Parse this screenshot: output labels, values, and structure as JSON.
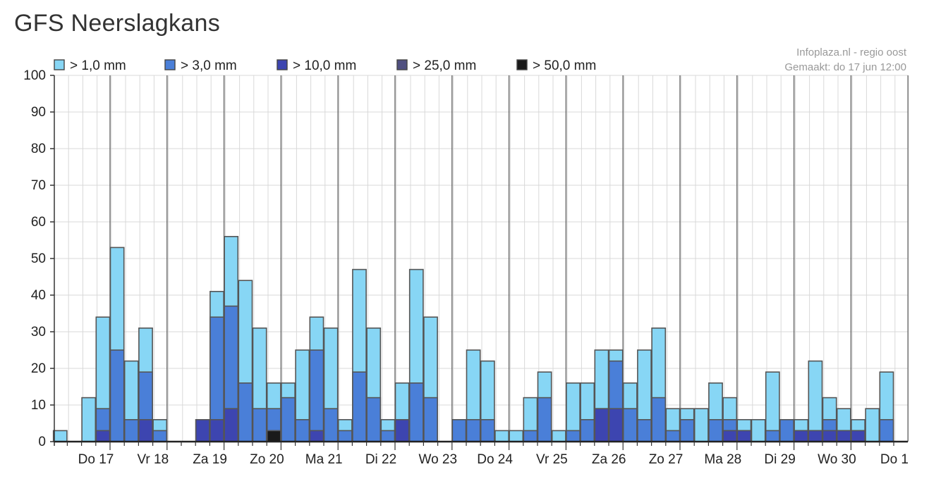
{
  "page": {
    "title": "GFS Neerslagkans"
  },
  "chart_data": {
    "type": "bar",
    "stacked": "overlay",
    "title": "",
    "xlabel": "",
    "ylabel": "",
    "ylim": [
      0,
      100
    ],
    "yticks": [
      0,
      10,
      20,
      30,
      40,
      50,
      60,
      70,
      80,
      90,
      100
    ],
    "grid": true,
    "legend_position": "top-left",
    "source": "Infoplaza.nl - regio oost",
    "made": "Gemaakt: do 17 jun 12:00",
    "day_labels": [
      "Do 17",
      "Vr 18",
      "Za 19",
      "Zo 20",
      "Ma 21",
      "Di 22",
      "Wo 23",
      "Do 24",
      "Vr 25",
      "Za 26",
      "Zo 27",
      "Ma 28",
      "Di 29",
      "Wo 30",
      "Do 1"
    ],
    "bars_per_day": 4,
    "series": [
      {
        "name": "> 1,0 mm",
        "color": "#87d6f5",
        "values": [
          3,
          0,
          12,
          34,
          53,
          22,
          31,
          6,
          0,
          0,
          6,
          41,
          56,
          44,
          31,
          16,
          16,
          25,
          34,
          31,
          6,
          47,
          31,
          6,
          16,
          47,
          34,
          0,
          6,
          25,
          22,
          3,
          3,
          12,
          19,
          3,
          16,
          16,
          25,
          25,
          16,
          25,
          31,
          9,
          9,
          9,
          16,
          12,
          6,
          6,
          19,
          6,
          6,
          22,
          12,
          9,
          6,
          9,
          19
        ]
      },
      {
        "name": "> 3,0 mm",
        "color": "#4a7fd8",
        "values": [
          0,
          0,
          0,
          9,
          25,
          6,
          19,
          3,
          0,
          0,
          6,
          34,
          37,
          16,
          9,
          9,
          12,
          6,
          25,
          9,
          3,
          19,
          12,
          3,
          6,
          16,
          12,
          0,
          6,
          6,
          6,
          0,
          0,
          3,
          12,
          0,
          3,
          6,
          9,
          22,
          9,
          6,
          12,
          3,
          6,
          0,
          6,
          6,
          3,
          0,
          3,
          6,
          3,
          3,
          6,
          3,
          3,
          0,
          6
        ]
      },
      {
        "name": "> 10,0 mm",
        "color": "#3d45b0",
        "values": [
          0,
          0,
          0,
          3,
          0,
          0,
          6,
          0,
          0,
          0,
          6,
          6,
          9,
          0,
          0,
          0,
          0,
          0,
          3,
          0,
          0,
          0,
          0,
          0,
          6,
          0,
          0,
          0,
          0,
          0,
          0,
          0,
          0,
          0,
          0,
          0,
          0,
          0,
          9,
          9,
          0,
          0,
          0,
          0,
          0,
          0,
          0,
          3,
          3,
          0,
          0,
          0,
          3,
          3,
          3,
          3,
          3,
          0,
          0
        ]
      },
      {
        "name": "> 25,0 mm",
        "color": "#505080",
        "values": [
          0,
          0,
          0,
          0,
          0,
          0,
          0,
          0,
          0,
          0,
          0,
          0,
          0,
          0,
          0,
          0,
          0,
          0,
          0,
          0,
          0,
          0,
          0,
          0,
          0,
          0,
          0,
          0,
          0,
          0,
          0,
          0,
          0,
          0,
          0,
          0,
          0,
          0,
          0,
          0,
          0,
          0,
          0,
          0,
          0,
          0,
          0,
          0,
          0,
          0,
          0,
          0,
          0,
          0,
          0,
          0,
          0,
          0,
          0
        ]
      },
      {
        "name": "> 50,0 mm",
        "color": "#1a1a1a",
        "values": [
          0,
          0,
          0,
          0,
          0,
          0,
          0,
          0,
          0,
          0,
          0,
          0,
          0,
          0,
          0,
          3,
          0,
          0,
          0,
          0,
          0,
          0,
          0,
          0,
          0,
          0,
          0,
          0,
          0,
          0,
          0,
          0,
          0,
          0,
          0,
          0,
          0,
          0,
          0,
          0,
          0,
          0,
          0,
          0,
          0,
          0,
          0,
          0,
          0,
          0,
          0,
          0,
          0,
          0,
          0,
          0,
          0,
          0,
          0
        ]
      }
    ]
  }
}
